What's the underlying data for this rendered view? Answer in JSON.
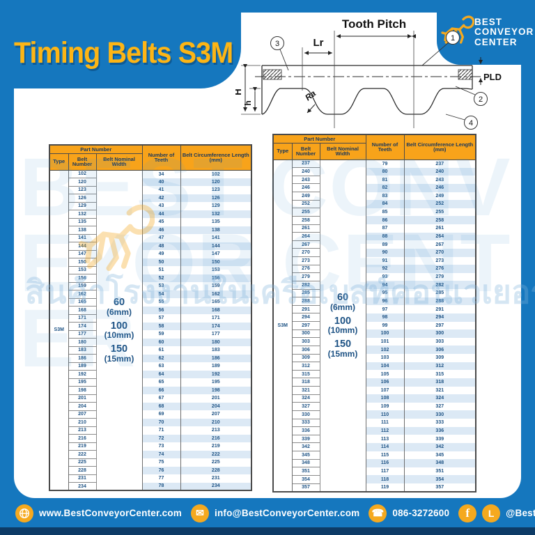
{
  "page": {
    "title": "Timing Belts S3M",
    "logo": {
      "line1": "BEST",
      "line2": "CONVEYOR",
      "line3": "CENTER"
    },
    "watermark": {
      "big_text": "BEST CONVEYOR CENTER",
      "thai_text": "สินค้าโรงงานในเครือเบสท์คอนเวเยอร์"
    }
  },
  "diagram": {
    "tooth_pitch": "Tooth Pitch",
    "lr": "Lr",
    "pld": "PLD",
    "dim_H": "H",
    "dim_h": "h",
    "ra": "Ra",
    "callout1": "1",
    "callout2": "2",
    "callout3": "3",
    "callout4": "4"
  },
  "tables": {
    "header": {
      "part_number": "Part Number",
      "type": "Type",
      "belt_number": "Belt Number",
      "belt_nominal_width": "Belt Nominal Width",
      "number_of_teeth": "Number of Teeth",
      "belt_circumference": "Belt Circumference Length (mm)"
    },
    "type_value": "S3M",
    "width_options": [
      {
        "num": "60",
        "mm": "(6mm)"
      },
      {
        "num": "100",
        "mm": "(10mm)"
      },
      {
        "num": "150",
        "mm": "(15mm)"
      }
    ],
    "left": {
      "rows": [
        [
          "102",
          "34",
          "102"
        ],
        [
          "120",
          "40",
          "120"
        ],
        [
          "123",
          "41",
          "123"
        ],
        [
          "126",
          "42",
          "126"
        ],
        [
          "129",
          "43",
          "129"
        ],
        [
          "132",
          "44",
          "132"
        ],
        [
          "135",
          "45",
          "135"
        ],
        [
          "138",
          "46",
          "138"
        ],
        [
          "141",
          "47",
          "141"
        ],
        [
          "144",
          "48",
          "144"
        ],
        [
          "147",
          "49",
          "147"
        ],
        [
          "150",
          "50",
          "150"
        ],
        [
          "153",
          "51",
          "153"
        ],
        [
          "156",
          "52",
          "156"
        ],
        [
          "159",
          "53",
          "159"
        ],
        [
          "162",
          "54",
          "162"
        ],
        [
          "165",
          "55",
          "165"
        ],
        [
          "168",
          "56",
          "168"
        ],
        [
          "171",
          "57",
          "171"
        ],
        [
          "174",
          "58",
          "174"
        ],
        [
          "177",
          "59",
          "177"
        ],
        [
          "180",
          "60",
          "180"
        ],
        [
          "183",
          "61",
          "183"
        ],
        [
          "186",
          "62",
          "186"
        ],
        [
          "189",
          "63",
          "189"
        ],
        [
          "192",
          "64",
          "192"
        ],
        [
          "195",
          "65",
          "195"
        ],
        [
          "198",
          "66",
          "198"
        ],
        [
          "201",
          "67",
          "201"
        ],
        [
          "204",
          "68",
          "204"
        ],
        [
          "207",
          "69",
          "207"
        ],
        [
          "210",
          "70",
          "210"
        ],
        [
          "213",
          "71",
          "213"
        ],
        [
          "216",
          "72",
          "216"
        ],
        [
          "219",
          "73",
          "219"
        ],
        [
          "222",
          "74",
          "222"
        ],
        [
          "225",
          "75",
          "225"
        ],
        [
          "228",
          "76",
          "228"
        ],
        [
          "231",
          "77",
          "231"
        ],
        [
          "234",
          "78",
          "234"
        ]
      ]
    },
    "right": {
      "rows": [
        [
          "237",
          "79",
          "237"
        ],
        [
          "240",
          "80",
          "240"
        ],
        [
          "243",
          "81",
          "243"
        ],
        [
          "246",
          "82",
          "246"
        ],
        [
          "249",
          "83",
          "249"
        ],
        [
          "252",
          "84",
          "252"
        ],
        [
          "255",
          "85",
          "255"
        ],
        [
          "258",
          "86",
          "258"
        ],
        [
          "261",
          "87",
          "261"
        ],
        [
          "264",
          "88",
          "264"
        ],
        [
          "267",
          "89",
          "267"
        ],
        [
          "270",
          "90",
          "270"
        ],
        [
          "273",
          "91",
          "273"
        ],
        [
          "276",
          "92",
          "276"
        ],
        [
          "279",
          "93",
          "279"
        ],
        [
          "282",
          "94",
          "282"
        ],
        [
          "285",
          "95",
          "285"
        ],
        [
          "288",
          "96",
          "288"
        ],
        [
          "291",
          "97",
          "291"
        ],
        [
          "294",
          "98",
          "294"
        ],
        [
          "297",
          "99",
          "297"
        ],
        [
          "300",
          "100",
          "300"
        ],
        [
          "303",
          "101",
          "303"
        ],
        [
          "306",
          "102",
          "306"
        ],
        [
          "309",
          "103",
          "309"
        ],
        [
          "312",
          "104",
          "312"
        ],
        [
          "315",
          "105",
          "315"
        ],
        [
          "318",
          "106",
          "318"
        ],
        [
          "321",
          "107",
          "321"
        ],
        [
          "324",
          "108",
          "324"
        ],
        [
          "327",
          "109",
          "327"
        ],
        [
          "330",
          "110",
          "330"
        ],
        [
          "333",
          "111",
          "333"
        ],
        [
          "336",
          "112",
          "336"
        ],
        [
          "339",
          "113",
          "339"
        ],
        [
          "342",
          "114",
          "342"
        ],
        [
          "345",
          "115",
          "345"
        ],
        [
          "348",
          "116",
          "348"
        ],
        [
          "351",
          "117",
          "351"
        ],
        [
          "354",
          "118",
          "354"
        ],
        [
          "357",
          "119",
          "357"
        ]
      ]
    }
  },
  "footer": {
    "website": "www.BestConveyorCenter.com",
    "email": "info@BestConveyorCenter.com",
    "phone": "086-3272600",
    "social": "@BestConveyorCenter",
    "facebook_glyph": "f",
    "line_glyph": "L"
  },
  "colors": {
    "background_blue": "#1577BE",
    "accent_yellow": "#FDB515",
    "icon_yellow": "#F5A91F",
    "table_header_orange": "#F8A31A",
    "dark_navy_text": "#17365D",
    "number_text": "#1d5284",
    "stripe_blue": "#DCE9F5",
    "footer_dark_strip": "#0D3B66"
  }
}
